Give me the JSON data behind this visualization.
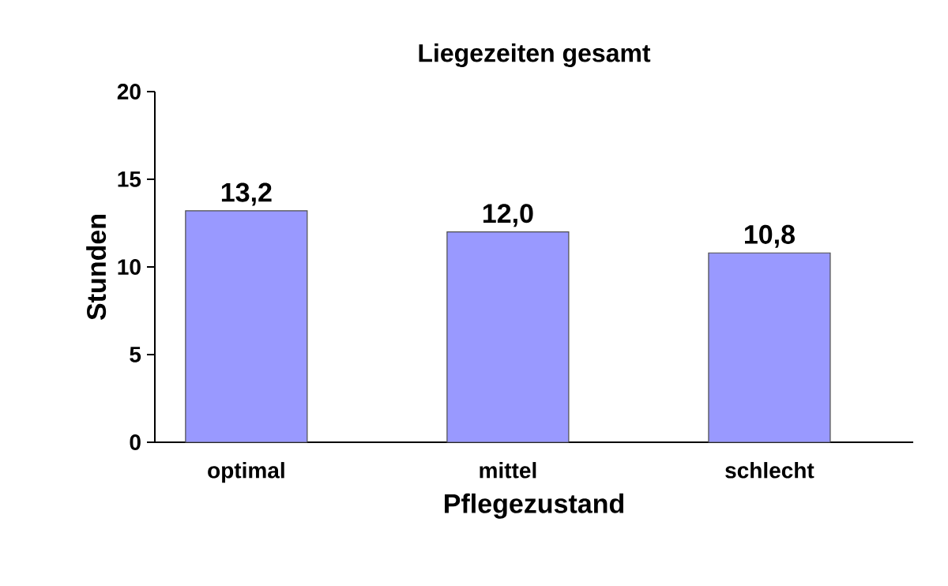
{
  "chart_data": {
    "type": "bar",
    "title": "Liegezeiten gesamt",
    "xlabel": "Pflegezustand",
    "ylabel": "Stunden",
    "categories": [
      "optimal",
      "mittel",
      "schlecht"
    ],
    "values": [
      13.2,
      12.0,
      10.8
    ],
    "value_labels": [
      "13,2",
      "12,0",
      "10,8"
    ],
    "color": "#9999ff",
    "ylim": [
      0,
      20
    ],
    "yticks": [
      0,
      5,
      10,
      15,
      20
    ],
    "grid": false
  }
}
